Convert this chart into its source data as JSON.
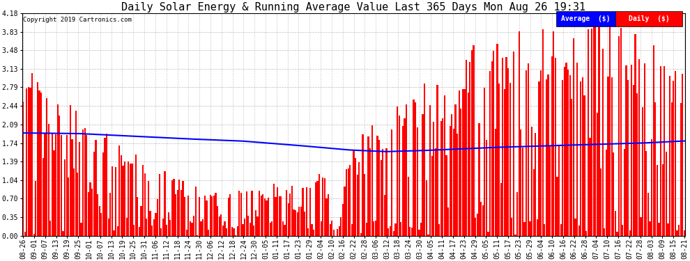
{
  "title": "Daily Solar Energy & Running Average Value Last 365 Days Mon Aug 26 19:31",
  "copyright": "Copyright 2019 Cartronics.com",
  "legend_avg": "Average  ($)",
  "legend_daily": "Daily  ($)",
  "ylabel_values": [
    0.0,
    0.35,
    0.7,
    1.04,
    1.39,
    1.74,
    2.09,
    2.44,
    2.79,
    3.13,
    3.48,
    3.83,
    4.18
  ],
  "ylim": [
    0.0,
    4.18
  ],
  "bar_color": "#FF0000",
  "avg_line_color": "#0000FF",
  "background_color": "#FFFFFF",
  "plot_bg_color": "#FFFFFF",
  "grid_color": "#AAAAAA",
  "title_fontsize": 11,
  "tick_fontsize": 7,
  "n_bars": 365,
  "x_tick_labels": [
    "08-26",
    "09-01",
    "09-07",
    "09-13",
    "09-19",
    "09-25",
    "10-01",
    "10-07",
    "10-13",
    "10-19",
    "10-25",
    "10-31",
    "11-06",
    "11-12",
    "11-18",
    "11-24",
    "11-30",
    "12-06",
    "12-12",
    "12-18",
    "12-24",
    "12-30",
    "01-05",
    "01-11",
    "01-17",
    "01-23",
    "01-29",
    "02-04",
    "02-10",
    "02-16",
    "02-22",
    "02-28",
    "03-06",
    "03-12",
    "03-18",
    "03-24",
    "03-30",
    "04-05",
    "04-11",
    "04-17",
    "04-23",
    "04-29",
    "05-05",
    "05-11",
    "05-17",
    "05-23",
    "05-29",
    "06-04",
    "06-10",
    "06-16",
    "06-22",
    "06-28",
    "07-04",
    "07-10",
    "07-16",
    "07-22",
    "07-28",
    "08-03",
    "08-09",
    "08-15",
    "08-21"
  ],
  "avg_control_points": [
    [
      0,
      1.93
    ],
    [
      30,
      1.92
    ],
    [
      60,
      1.87
    ],
    [
      90,
      1.82
    ],
    [
      120,
      1.78
    ],
    [
      150,
      1.7
    ],
    [
      180,
      1.61
    ],
    [
      200,
      1.58
    ],
    [
      220,
      1.6
    ],
    [
      240,
      1.63
    ],
    [
      260,
      1.66
    ],
    [
      280,
      1.68
    ],
    [
      300,
      1.7
    ],
    [
      320,
      1.72
    ],
    [
      340,
      1.74
    ],
    [
      364,
      1.78
    ]
  ]
}
